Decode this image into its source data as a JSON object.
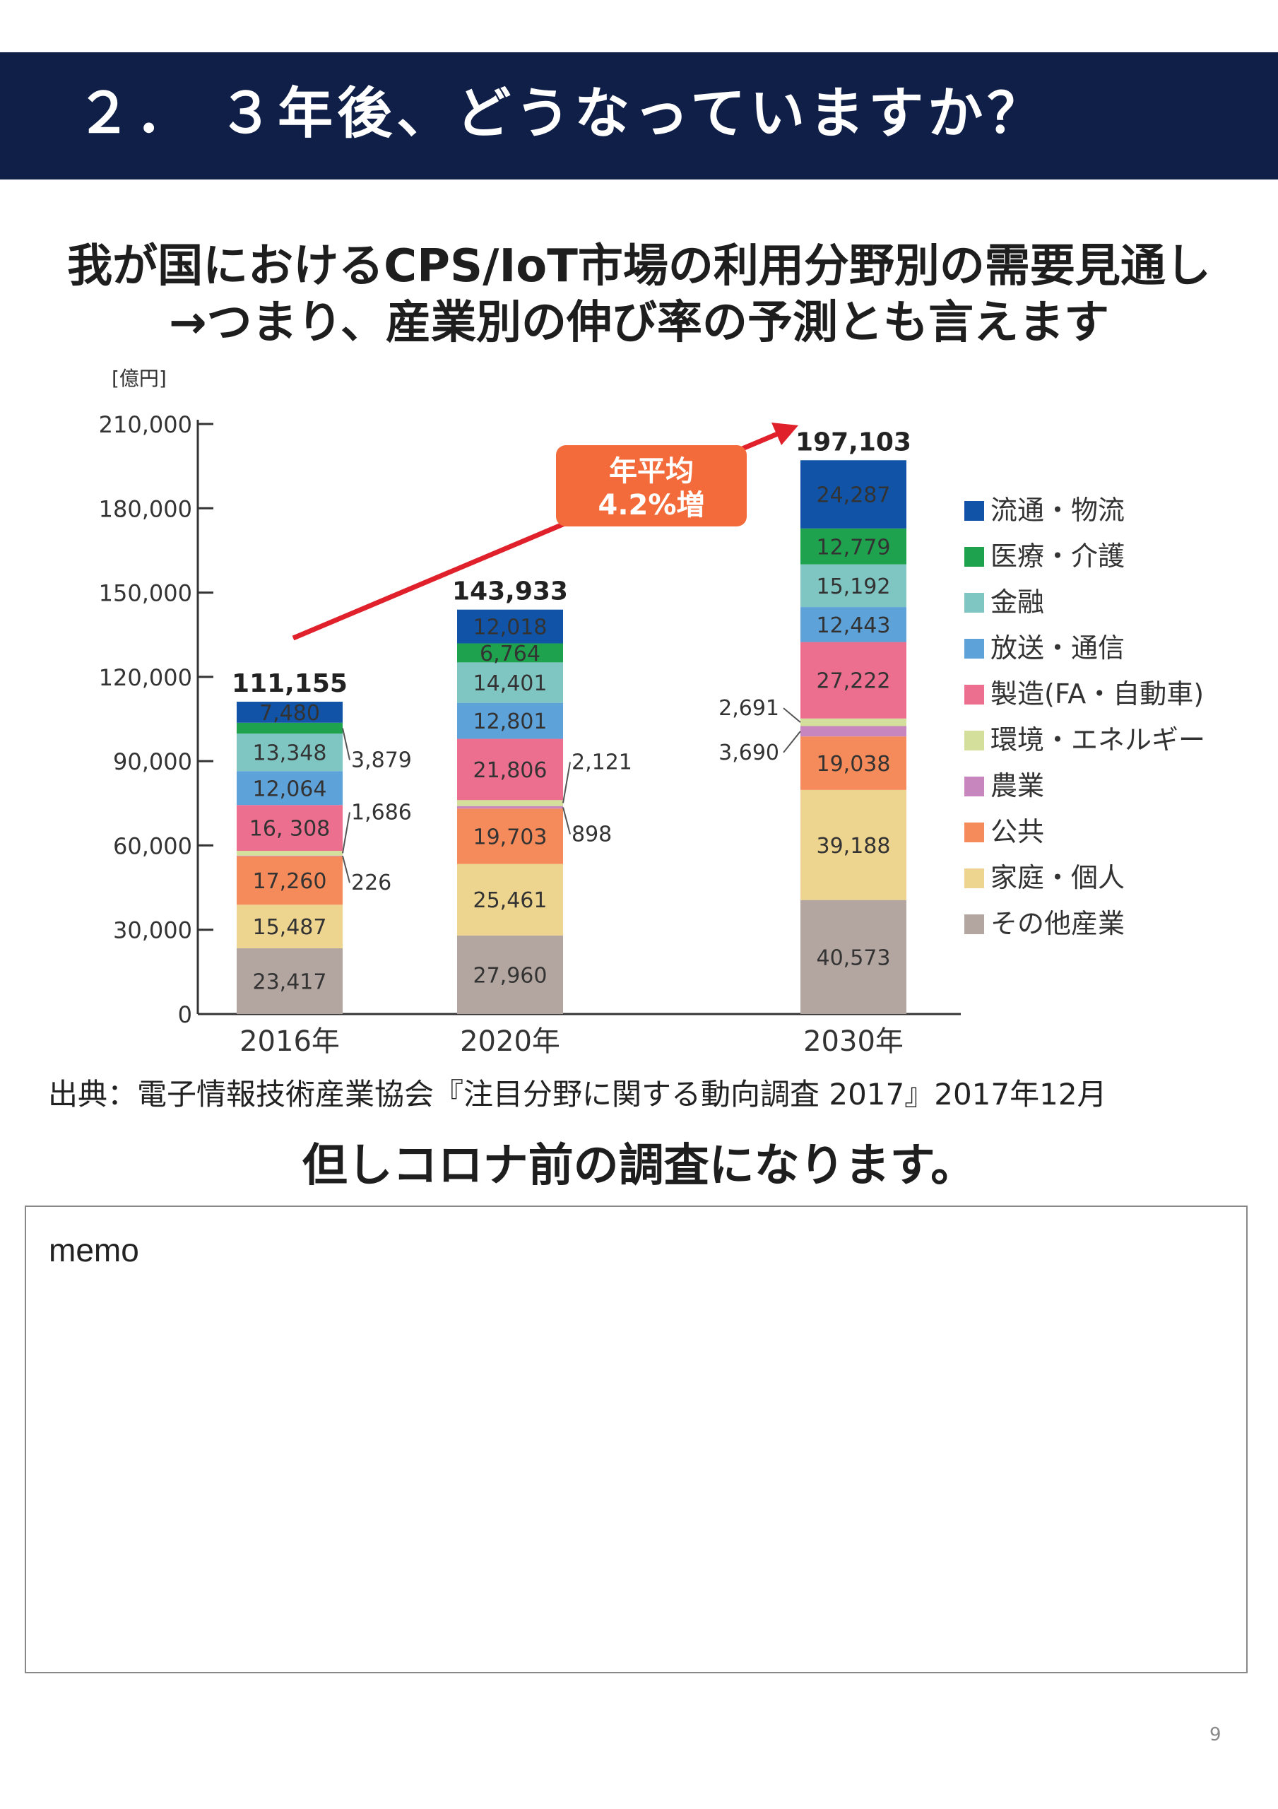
{
  "page": {
    "title": "２． ３年後、どうなっていますか？",
    "subtitle_line1": "我が国におけるCPS/IoT市場の利用分野別の需要見通し",
    "subtitle_line2": "→つまり、産業別の伸び率の予測とも言えます",
    "source": "出典：電子情報技術産業協会『注目分野に関する動向調査 2017』2017年12月",
    "note": "但しコロナ前の調査になります。",
    "memo_label": "memo",
    "page_number": "9"
  },
  "chart_data": {
    "type": "bar",
    "stacked": true,
    "unit_label": "[億円]",
    "categories": [
      "2016年",
      "2020年",
      "2030年"
    ],
    "totals": [
      "111,155",
      "143,933",
      "197,103"
    ],
    "ylim": [
      0,
      210000
    ],
    "yticks": [
      "0",
      "30,000",
      "60,000",
      "90,000",
      "120,000",
      "150,000",
      "180,000",
      "210,000"
    ],
    "growth_label": [
      "年平均",
      "4.2%増"
    ],
    "series": [
      {
        "name": "その他産業",
        "color": "#b3a6a1",
        "values": [
          23417,
          27960,
          40573
        ],
        "labels": [
          "23,417",
          "27,960",
          "40,573"
        ]
      },
      {
        "name": "家庭・個人",
        "color": "#eed58f",
        "values": [
          15487,
          25461,
          39188
        ],
        "labels": [
          "15,487",
          "25,461",
          "39,188"
        ]
      },
      {
        "name": "公共",
        "color": "#f58b5a",
        "values": [
          17260,
          19703,
          19038
        ],
        "labels": [
          "17,260",
          "19,703",
          "19,038"
        ]
      },
      {
        "name": "農業",
        "color": "#c886be",
        "values": [
          226,
          898,
          3690
        ],
        "labels": [
          "226",
          "898",
          "3,690"
        ]
      },
      {
        "name": "環境・エネルギー",
        "color": "#d3df9a",
        "values": [
          1686,
          2121,
          2691
        ],
        "labels": [
          "1,686",
          "2,121",
          "2,691"
        ]
      },
      {
        "name": "製造(FA・自動車)",
        "color": "#ec6f8f",
        "values": [
          16308,
          21806,
          27222
        ],
        "labels": [
          "16, 308",
          "21,806",
          "27,222"
        ]
      },
      {
        "name": "放送・通信",
        "color": "#5ea2da",
        "values": [
          12064,
          12801,
          12443
        ],
        "labels": [
          "12,064",
          "12,801",
          "12,443"
        ]
      },
      {
        "name": "金融",
        "color": "#7fc6c3",
        "values": [
          13348,
          14401,
          15192
        ],
        "labels": [
          "13,348",
          "14,401",
          "15,192"
        ]
      },
      {
        "name": "医療・介護",
        "color": "#1fa24e",
        "values": [
          3879,
          6764,
          12779
        ],
        "labels": [
          "3,879",
          "6,764",
          "12,779"
        ]
      },
      {
        "name": "流通・物流",
        "color": "#1153a6",
        "values": [
          7480,
          12018,
          24287
        ],
        "labels": [
          "7,480",
          "12,018",
          "24,287"
        ]
      }
    ]
  }
}
